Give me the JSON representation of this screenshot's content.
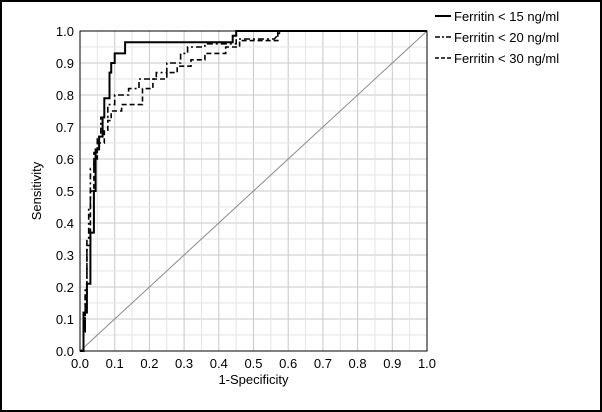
{
  "chart_data": {
    "type": "line",
    "title": "",
    "xlabel": "1-Specificity",
    "ylabel": "Sensitivity",
    "xlim": [
      0.0,
      1.0
    ],
    "ylim": [
      0.0,
      1.0
    ],
    "xticks": [
      "0.0",
      "0.1",
      "0.2",
      "0.3",
      "0.4",
      "0.5",
      "0.6",
      "0.7",
      "0.8",
      "0.9",
      "1.0"
    ],
    "yticks": [
      "0.0",
      "0.1",
      "0.2",
      "0.3",
      "0.4",
      "0.5",
      "0.6",
      "0.7",
      "0.8",
      "0.9",
      "1.0"
    ],
    "grid": true,
    "legend_position": "right",
    "reference_line": [
      [
        0.0,
        0.0
      ],
      [
        1.0,
        1.0
      ]
    ],
    "series": [
      {
        "name": "Ferritin < 15 ng/ml",
        "style": "solid",
        "color": "#000000",
        "points": [
          [
            0.0,
            0.0
          ],
          [
            0.01,
            0.0
          ],
          [
            0.01,
            0.12
          ],
          [
            0.02,
            0.12
          ],
          [
            0.02,
            0.21
          ],
          [
            0.03,
            0.21
          ],
          [
            0.03,
            0.37
          ],
          [
            0.04,
            0.37
          ],
          [
            0.04,
            0.5
          ],
          [
            0.045,
            0.5
          ],
          [
            0.045,
            0.63
          ],
          [
            0.055,
            0.63
          ],
          [
            0.055,
            0.67
          ],
          [
            0.065,
            0.67
          ],
          [
            0.065,
            0.73
          ],
          [
            0.07,
            0.73
          ],
          [
            0.07,
            0.79
          ],
          [
            0.085,
            0.79
          ],
          [
            0.085,
            0.87
          ],
          [
            0.09,
            0.87
          ],
          [
            0.09,
            0.9
          ],
          [
            0.1,
            0.9
          ],
          [
            0.1,
            0.93
          ],
          [
            0.13,
            0.93
          ],
          [
            0.13,
            0.965
          ],
          [
            0.16,
            0.965
          ],
          [
            0.43,
            0.965
          ],
          [
            0.44,
            0.965
          ],
          [
            0.44,
            0.985
          ],
          [
            0.45,
            0.985
          ],
          [
            0.45,
            1.0
          ],
          [
            1.0,
            1.0
          ]
        ]
      },
      {
        "name": "Ferritin < 20 ng/ml",
        "style": "dash-dot",
        "color": "#000000",
        "points": [
          [
            0.0,
            0.0
          ],
          [
            0.01,
            0.0
          ],
          [
            0.01,
            0.07
          ],
          [
            0.015,
            0.07
          ],
          [
            0.015,
            0.2
          ],
          [
            0.02,
            0.2
          ],
          [
            0.02,
            0.35
          ],
          [
            0.025,
            0.35
          ],
          [
            0.025,
            0.45
          ],
          [
            0.03,
            0.45
          ],
          [
            0.03,
            0.57
          ],
          [
            0.04,
            0.57
          ],
          [
            0.04,
            0.62
          ],
          [
            0.05,
            0.62
          ],
          [
            0.05,
            0.67
          ],
          [
            0.06,
            0.67
          ],
          [
            0.06,
            0.73
          ],
          [
            0.08,
            0.73
          ],
          [
            0.08,
            0.77
          ],
          [
            0.1,
            0.77
          ],
          [
            0.1,
            0.8
          ],
          [
            0.14,
            0.8
          ],
          [
            0.14,
            0.82
          ],
          [
            0.17,
            0.82
          ],
          [
            0.17,
            0.85
          ],
          [
            0.22,
            0.85
          ],
          [
            0.22,
            0.87
          ],
          [
            0.25,
            0.87
          ],
          [
            0.25,
            0.9
          ],
          [
            0.29,
            0.9
          ],
          [
            0.29,
            0.93
          ],
          [
            0.31,
            0.93
          ],
          [
            0.31,
            0.95
          ],
          [
            0.36,
            0.95
          ],
          [
            0.36,
            0.96
          ],
          [
            0.45,
            0.96
          ],
          [
            0.45,
            0.975
          ],
          [
            0.56,
            0.975
          ],
          [
            0.58,
            1.0
          ],
          [
            1.0,
            1.0
          ]
        ]
      },
      {
        "name": "Ferritin < 30 ng/ml",
        "style": "dashed",
        "color": "#000000",
        "points": [
          [
            0.0,
            0.0
          ],
          [
            0.01,
            0.0
          ],
          [
            0.01,
            0.06
          ],
          [
            0.015,
            0.06
          ],
          [
            0.015,
            0.18
          ],
          [
            0.02,
            0.18
          ],
          [
            0.02,
            0.33
          ],
          [
            0.03,
            0.33
          ],
          [
            0.03,
            0.5
          ],
          [
            0.04,
            0.5
          ],
          [
            0.04,
            0.6
          ],
          [
            0.05,
            0.6
          ],
          [
            0.05,
            0.65
          ],
          [
            0.07,
            0.65
          ],
          [
            0.07,
            0.69
          ],
          [
            0.08,
            0.69
          ],
          [
            0.08,
            0.72
          ],
          [
            0.09,
            0.72
          ],
          [
            0.09,
            0.75
          ],
          [
            0.12,
            0.75
          ],
          [
            0.12,
            0.77
          ],
          [
            0.18,
            0.77
          ],
          [
            0.18,
            0.82
          ],
          [
            0.21,
            0.82
          ],
          [
            0.21,
            0.85
          ],
          [
            0.25,
            0.85
          ],
          [
            0.25,
            0.87
          ],
          [
            0.28,
            0.87
          ],
          [
            0.28,
            0.89
          ],
          [
            0.32,
            0.89
          ],
          [
            0.32,
            0.91
          ],
          [
            0.36,
            0.91
          ],
          [
            0.36,
            0.93
          ],
          [
            0.42,
            0.93
          ],
          [
            0.42,
            0.95
          ],
          [
            0.46,
            0.95
          ],
          [
            0.46,
            0.97
          ],
          [
            0.57,
            0.97
          ],
          [
            0.57,
            1.0
          ],
          [
            1.0,
            1.0
          ]
        ]
      }
    ]
  }
}
